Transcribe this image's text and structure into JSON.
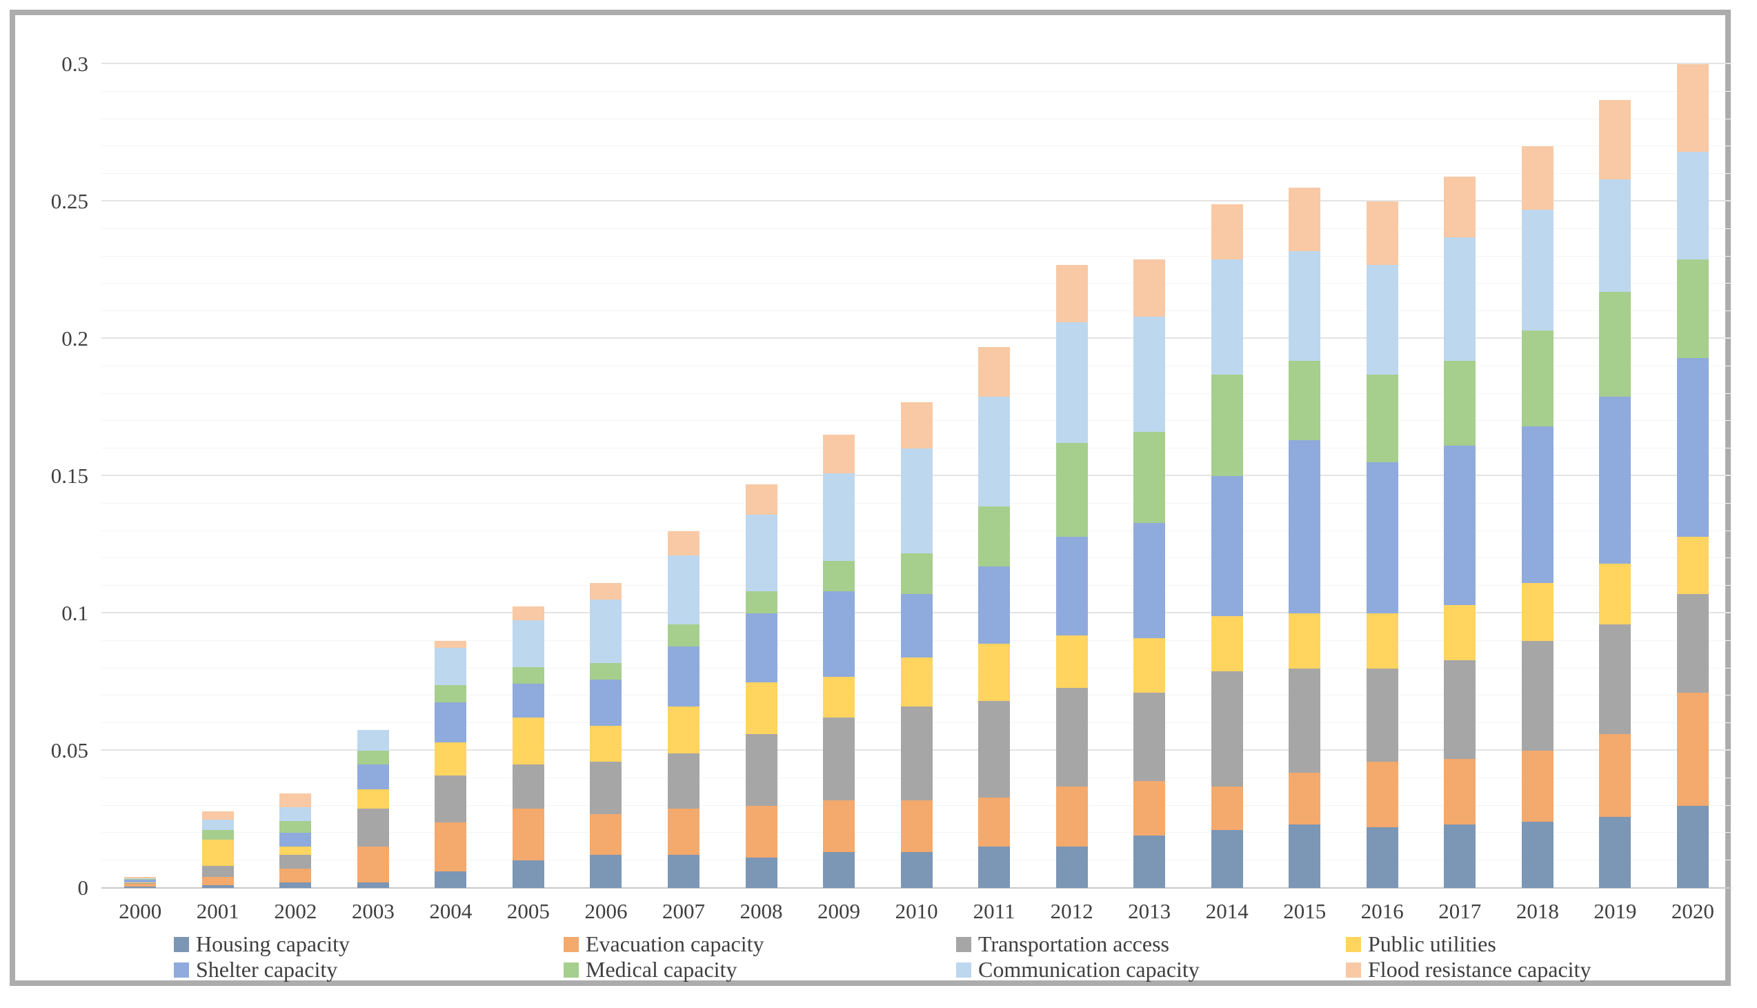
{
  "frame": {
    "border_color": "#acacac",
    "background": "#ffffff"
  },
  "axis": {
    "y_ticks": [
      {
        "label": "0",
        "value": 0
      },
      {
        "label": "0.05",
        "value": 0.05
      },
      {
        "label": "0.1",
        "value": 0.1
      },
      {
        "label": "0.15",
        "value": 0.15
      },
      {
        "label": "0.2",
        "value": 0.2
      },
      {
        "label": "0.25",
        "value": 0.25
      },
      {
        "label": "0.3",
        "value": 0.3
      }
    ]
  },
  "chart_data": {
    "type": "bar",
    "stacked": true,
    "title": "",
    "xlabel": "",
    "ylabel": "",
    "ylim": [
      0,
      0.3
    ],
    "grid": "horizontal; minor every 0.01, major every 0.05",
    "legend_position": "bottom, 2 rows x 4 columns",
    "categories": [
      "2000",
      "2001",
      "2002",
      "2003",
      "2004",
      "2005",
      "2006",
      "2007",
      "2008",
      "2009",
      "2010",
      "2011",
      "2012",
      "2013",
      "2014",
      "2015",
      "2016",
      "2017",
      "2018",
      "2019",
      "2020"
    ],
    "series": [
      {
        "name": "Housing capacity",
        "color": "#7c96b5",
        "values": [
          0.0005,
          0.001,
          0.002,
          0.002,
          0.006,
          0.01,
          0.012,
          0.012,
          0.011,
          0.013,
          0.013,
          0.015,
          0.015,
          0.019,
          0.021,
          0.023,
          0.022,
          0.023,
          0.024,
          0.026,
          0.03
        ]
      },
      {
        "name": "Evacuation capacity",
        "color": "#f4a96d",
        "values": [
          0.001,
          0.003,
          0.005,
          0.013,
          0.018,
          0.019,
          0.015,
          0.017,
          0.019,
          0.019,
          0.019,
          0.018,
          0.022,
          0.02,
          0.016,
          0.019,
          0.024,
          0.024,
          0.026,
          0.03,
          0.041
        ]
      },
      {
        "name": "Transportation access",
        "color": "#a6a6a6",
        "values": [
          0.0003,
          0.004,
          0.005,
          0.014,
          0.017,
          0.016,
          0.019,
          0.02,
          0.026,
          0.03,
          0.034,
          0.035,
          0.036,
          0.032,
          0.042,
          0.038,
          0.034,
          0.036,
          0.04,
          0.04,
          0.036
        ]
      },
      {
        "name": "Public utilities",
        "color": "#ffd45f",
        "values": [
          0.0002,
          0.0095,
          0.003,
          0.007,
          0.012,
          0.017,
          0.013,
          0.017,
          0.019,
          0.015,
          0.018,
          0.021,
          0.019,
          0.02,
          0.02,
          0.02,
          0.02,
          0.02,
          0.021,
          0.022,
          0.021
        ]
      },
      {
        "name": "Shelter capacity",
        "color": "#8faadc",
        "values": [
          0.001,
          0.0,
          0.005,
          0.009,
          0.0145,
          0.0125,
          0.017,
          0.022,
          0.025,
          0.031,
          0.023,
          0.028,
          0.036,
          0.042,
          0.051,
          0.063,
          0.055,
          0.058,
          0.057,
          0.061,
          0.065
        ]
      },
      {
        "name": "Medical capacity",
        "color": "#a6ce8d",
        "values": [
          0.0002,
          0.0035,
          0.0045,
          0.005,
          0.0065,
          0.006,
          0.006,
          0.008,
          0.008,
          0.011,
          0.015,
          0.022,
          0.034,
          0.033,
          0.037,
          0.029,
          0.032,
          0.031,
          0.035,
          0.038,
          0.036
        ]
      },
      {
        "name": "Communication capacity",
        "color": "#bdd7ee",
        "values": [
          0.0003,
          0.004,
          0.005,
          0.0075,
          0.0135,
          0.017,
          0.023,
          0.025,
          0.028,
          0.032,
          0.038,
          0.04,
          0.044,
          0.042,
          0.042,
          0.04,
          0.04,
          0.045,
          0.044,
          0.041,
          0.039
        ]
      },
      {
        "name": "Flood resistance capacity",
        "color": "#f8c9a4",
        "values": [
          0.0005,
          0.003,
          0.005,
          0.0,
          0.0025,
          0.005,
          0.006,
          0.009,
          0.011,
          0.014,
          0.017,
          0.018,
          0.021,
          0.021,
          0.02,
          0.023,
          0.023,
          0.022,
          0.023,
          0.029,
          0.032
        ]
      }
    ]
  }
}
